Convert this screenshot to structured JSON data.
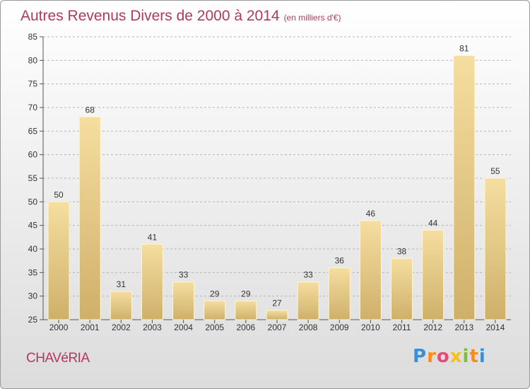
{
  "title": {
    "main": "Autres Revenus Divers de 2000 à 2014",
    "unit": "(en milliers d'€)"
  },
  "commune": "CHAVéRIA",
  "logo_text": "Proxiti",
  "colors": {
    "title": "#b1395f",
    "bar_light": "#f5dea0",
    "bar_dark": "#cfb06a",
    "grid": "#b5b5b5"
  },
  "chart_data": {
    "type": "bar",
    "title": "Autres Revenus Divers de 2000 à 2014",
    "subtitle": "(en milliers d'€)",
    "categories": [
      "2000",
      "2001",
      "2002",
      "2003",
      "2004",
      "2005",
      "2006",
      "2007",
      "2008",
      "2009",
      "2010",
      "2011",
      "2012",
      "2013",
      "2014"
    ],
    "values": [
      50,
      68,
      31,
      41,
      33,
      29,
      29,
      27,
      33,
      36,
      46,
      38,
      44,
      81,
      55
    ],
    "ylim": [
      25,
      85
    ],
    "yticks": [
      25,
      30,
      35,
      40,
      45,
      50,
      55,
      60,
      65,
      70,
      75,
      80,
      85
    ],
    "grid": true,
    "xlabel": "",
    "ylabel": ""
  }
}
